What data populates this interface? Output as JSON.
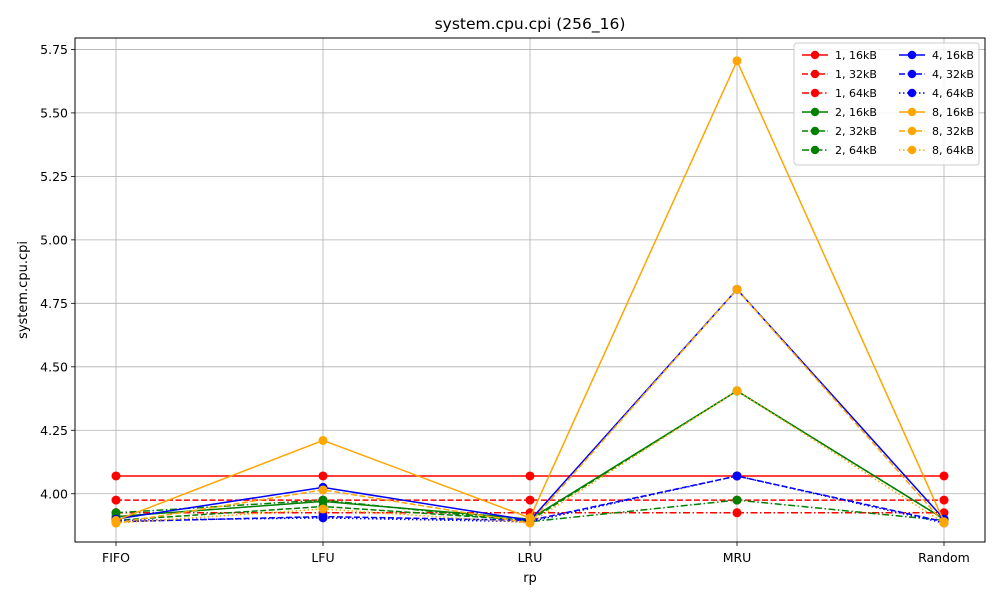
{
  "chart_data": {
    "type": "line",
    "title": "system.cpu.cpi (256_16)",
    "xlabel": "rp",
    "ylabel": "system.cpu.cpi",
    "categories": [
      "FIFO",
      "LFU",
      "LRU",
      "MRU",
      "Random"
    ],
    "ylim": [
      3.81,
      5.795
    ],
    "yticks": [
      "4.00",
      "4.25",
      "4.50",
      "4.75",
      "5.00",
      "5.25",
      "5.50",
      "5.75"
    ],
    "grid": true,
    "legend_position": "top-right",
    "series": [
      {
        "name": "1, 16kB",
        "color": "#ff0000",
        "dash": "solid",
        "values": [
          4.07,
          4.07,
          4.07,
          4.07,
          4.07
        ]
      },
      {
        "name": "1, 32kB",
        "color": "#ff0000",
        "dash": "dashed",
        "values": [
          3.975,
          3.975,
          3.975,
          3.975,
          3.975
        ]
      },
      {
        "name": "1, 64kB",
        "color": "#ff0000",
        "dash": "dashdot",
        "values": [
          3.925,
          3.925,
          3.925,
          3.925,
          3.925
        ]
      },
      {
        "name": "2, 16kB",
        "color": "#008000",
        "dash": "solid",
        "values": [
          3.91,
          3.97,
          3.9,
          4.405,
          3.9
        ]
      },
      {
        "name": "2, 32kB",
        "color": "#008000",
        "dash": "dashed",
        "values": [
          3.895,
          3.95,
          3.895,
          4.405,
          3.9
        ]
      },
      {
        "name": "2, 64kB",
        "color": "#008000",
        "dash": "dashdot",
        "values": [
          3.925,
          3.975,
          3.89,
          3.975,
          3.895
        ]
      },
      {
        "name": "4, 16kB",
        "color": "#0000ff",
        "dash": "solid",
        "values": [
          3.9,
          4.025,
          3.895,
          4.805,
          3.9
        ]
      },
      {
        "name": "4, 32kB",
        "color": "#0000ff",
        "dash": "dashed",
        "values": [
          3.89,
          3.91,
          3.895,
          4.07,
          3.89
        ]
      },
      {
        "name": "4, 64kB",
        "color": "#0000ff",
        "dash": "dotted",
        "values": [
          3.895,
          3.905,
          3.89,
          4.07,
          3.885
        ]
      },
      {
        "name": "8, 16kB",
        "color": "#ffa500",
        "dash": "solid",
        "values": [
          3.895,
          4.21,
          3.905,
          5.705,
          3.89
        ]
      },
      {
        "name": "8, 32kB",
        "color": "#ffa500",
        "dash": "dashed",
        "values": [
          3.885,
          4.015,
          3.885,
          4.805,
          3.885
        ]
      },
      {
        "name": "8, 64kB",
        "color": "#ffa500",
        "dash": "dotted",
        "values": [
          3.885,
          3.94,
          3.885,
          4.405,
          3.885
        ]
      }
    ]
  }
}
